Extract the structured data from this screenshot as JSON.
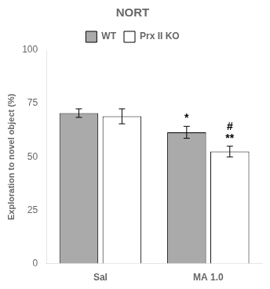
{
  "chart_data": {
    "type": "bar",
    "title": "NORT",
    "ylabel": "Exploration to novel object (%)",
    "categories": [
      "Sal",
      "MA 1.0"
    ],
    "series": [
      {
        "name": "WT",
        "color": "#aaaaaa",
        "values": [
          70.5,
          61.5
        ],
        "errors": [
          2.0,
          2.8
        ]
      },
      {
        "name": "Prx II KO",
        "color": "#ffffff",
        "values": [
          69.0,
          52.5
        ],
        "errors": [
          3.5,
          2.5
        ]
      }
    ],
    "annotations": [
      {
        "text": "*",
        "series": "WT",
        "category": "MA 1.0"
      },
      {
        "text": "**",
        "series": "Prx II KO",
        "category": "MA 1.0"
      },
      {
        "text": "#",
        "series": "Prx II KO",
        "category": "MA 1.0"
      }
    ],
    "ylim": [
      0,
      100
    ],
    "yticks": [
      0,
      25,
      50,
      75,
      100
    ],
    "grid": false,
    "legend": "top"
  }
}
